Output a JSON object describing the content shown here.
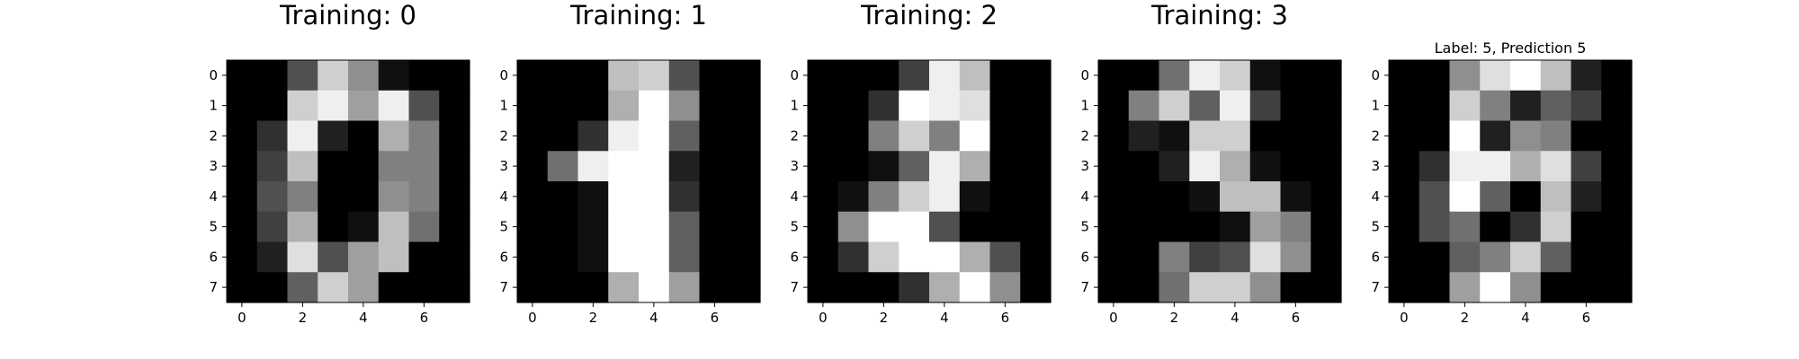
{
  "chart_data": [
    {
      "type": "heatmap",
      "title": "Training: 0",
      "xticks": [
        "0",
        "2",
        "4",
        "6"
      ],
      "yticks": [
        "0",
        "1",
        "2",
        "3",
        "4",
        "5",
        "6",
        "7"
      ],
      "values": [
        [
          0,
          0,
          5,
          13,
          9,
          1,
          0,
          0
        ],
        [
          0,
          0,
          13,
          15,
          10,
          15,
          5,
          0
        ],
        [
          0,
          3,
          15,
          2,
          0,
          11,
          8,
          0
        ],
        [
          0,
          4,
          12,
          0,
          0,
          8,
          8,
          0
        ],
        [
          0,
          5,
          8,
          0,
          0,
          9,
          8,
          0
        ],
        [
          0,
          4,
          11,
          0,
          1,
          12,
          7,
          0
        ],
        [
          0,
          2,
          14,
          5,
          10,
          12,
          0,
          0
        ],
        [
          0,
          0,
          6,
          13,
          10,
          0,
          0,
          0
        ]
      ],
      "vmin": 0,
      "vmax": 16,
      "colormap": "gray_r"
    },
    {
      "type": "heatmap",
      "title": "Training: 1",
      "xticks": [
        "0",
        "2",
        "4",
        "6"
      ],
      "yticks": [
        "0",
        "1",
        "2",
        "3",
        "4",
        "5",
        "6",
        "7"
      ],
      "values": [
        [
          0,
          0,
          0,
          12,
          13,
          5,
          0,
          0
        ],
        [
          0,
          0,
          0,
          11,
          16,
          9,
          0,
          0
        ],
        [
          0,
          0,
          3,
          15,
          16,
          6,
          0,
          0
        ],
        [
          0,
          7,
          15,
          16,
          16,
          2,
          0,
          0
        ],
        [
          0,
          0,
          1,
          16,
          16,
          3,
          0,
          0
        ],
        [
          0,
          0,
          1,
          16,
          16,
          6,
          0,
          0
        ],
        [
          0,
          0,
          1,
          16,
          16,
          6,
          0,
          0
        ],
        [
          0,
          0,
          0,
          11,
          16,
          10,
          0,
          0
        ]
      ],
      "vmin": 0,
      "vmax": 16,
      "colormap": "gray_r"
    },
    {
      "type": "heatmap",
      "title": "Training: 2",
      "xticks": [
        "0",
        "2",
        "4",
        "6"
      ],
      "yticks": [
        "0",
        "1",
        "2",
        "3",
        "4",
        "5",
        "6",
        "7"
      ],
      "values": [
        [
          0,
          0,
          0,
          4,
          15,
          12,
          0,
          0
        ],
        [
          0,
          0,
          3,
          16,
          15,
          14,
          0,
          0
        ],
        [
          0,
          0,
          8,
          13,
          8,
          16,
          0,
          0
        ],
        [
          0,
          0,
          1,
          6,
          15,
          11,
          0,
          0
        ],
        [
          0,
          1,
          8,
          13,
          15,
          1,
          0,
          0
        ],
        [
          0,
          9,
          16,
          16,
          5,
          0,
          0,
          0
        ],
        [
          0,
          3,
          13,
          16,
          16,
          11,
          5,
          0
        ],
        [
          0,
          0,
          0,
          3,
          11,
          16,
          9,
          0
        ]
      ],
      "vmin": 0,
      "vmax": 16,
      "colormap": "gray_r"
    },
    {
      "type": "heatmap",
      "title": "Training: 3",
      "xticks": [
        "0",
        "2",
        "4",
        "6"
      ],
      "yticks": [
        "0",
        "1",
        "2",
        "3",
        "4",
        "5",
        "6",
        "7"
      ],
      "values": [
        [
          0,
          0,
          7,
          15,
          13,
          1,
          0,
          0
        ],
        [
          0,
          8,
          13,
          6,
          15,
          4,
          0,
          0
        ],
        [
          0,
          2,
          1,
          13,
          13,
          0,
          0,
          0
        ],
        [
          0,
          0,
          2,
          15,
          11,
          1,
          0,
          0
        ],
        [
          0,
          0,
          0,
          1,
          12,
          12,
          1,
          0
        ],
        [
          0,
          0,
          0,
          0,
          1,
          10,
          8,
          0
        ],
        [
          0,
          0,
          8,
          4,
          5,
          14,
          9,
          0
        ],
        [
          0,
          0,
          7,
          13,
          13,
          9,
          0,
          0
        ]
      ],
      "vmin": 0,
      "vmax": 16,
      "colormap": "gray_r"
    },
    {
      "type": "heatmap",
      "title": "Label: 5, Prediction 5",
      "xticks": [
        "0",
        "2",
        "4",
        "6"
      ],
      "yticks": [
        "0",
        "1",
        "2",
        "3",
        "4",
        "5",
        "6",
        "7"
      ],
      "values": [
        [
          0,
          0,
          9,
          14,
          16,
          12,
          2,
          0
        ],
        [
          0,
          0,
          13,
          8,
          2,
          6,
          4,
          0
        ],
        [
          0,
          0,
          16,
          2,
          9,
          8,
          0,
          0
        ],
        [
          0,
          3,
          15,
          15,
          11,
          14,
          4,
          0
        ],
        [
          0,
          5,
          16,
          6,
          0,
          12,
          2,
          0
        ],
        [
          0,
          5,
          7,
          0,
          3,
          13,
          0,
          0
        ],
        [
          0,
          0,
          6,
          8,
          13,
          6,
          0,
          0
        ],
        [
          0,
          0,
          10,
          16,
          9,
          0,
          0,
          0
        ]
      ],
      "vmin": 0,
      "vmax": 16,
      "colormap": "gray_r"
    }
  ]
}
